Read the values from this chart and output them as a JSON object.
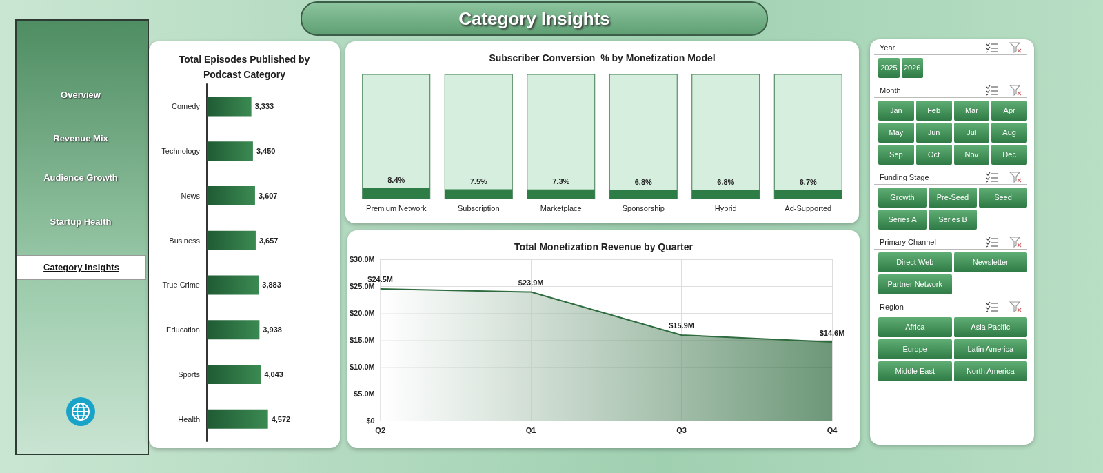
{
  "chart_data": [
    {
      "type": "other",
      "title": "Category Insights",
      "annotations": [
        "Overview",
        "Revenue Mix",
        "Audience Growth",
        "Startup Health",
        "Category Insights"
      ]
    },
    {
      "type": "bar",
      "orientation": "horizontal",
      "title": "Total Episodes Published by Podcast Category",
      "categories": [
        "Comedy",
        "Technology",
        "News",
        "Business",
        "True Crime",
        "Education",
        "Sports",
        "Health"
      ],
      "values": [
        3333,
        3450,
        3607,
        3657,
        3883,
        3938,
        4043,
        4572
      ],
      "value_labels": [
        "3,333",
        "3,450",
        "3,607",
        "3,657",
        "3,883",
        "3,938",
        "4,043",
        "4,572"
      ],
      "color": "#3b8a52"
    },
    {
      "type": "bar",
      "title": "Subscriber Conversion  % by Monetization Model",
      "categories": [
        "Premium Network",
        "Subscription",
        "Marketplace",
        "Sponsorship",
        "Hybrid",
        "Ad-Supported"
      ],
      "values": [
        8.4,
        7.5,
        7.3,
        6.8,
        6.8,
        6.7
      ],
      "value_labels": [
        "8.4%",
        "7.5%",
        "7.3%",
        "6.8%",
        "6.8%",
        "6.7%"
      ],
      "color": "#2f7d46",
      "ylim": [
        0,
        100
      ],
      "tick_labels": "x"
    },
    {
      "type": "area",
      "title": "Total Monetization Revenue by Quarter",
      "categories": [
        "Q2",
        "Q1",
        "Q3",
        "Q4"
      ],
      "values": [
        24.5,
        23.9,
        15.9,
        14.6
      ],
      "value_labels": [
        "$24.5M",
        "$23.9M",
        "$15.9M",
        "$14.6M"
      ],
      "color": "#2e6b3e",
      "ylim": [
        0,
        30
      ],
      "yticks": [
        {
          "value": 0,
          "label": "$0"
        },
        {
          "value": 5,
          "label": "$5.0M"
        },
        {
          "value": 10,
          "label": "$10.0M"
        },
        {
          "value": 15,
          "label": "$15.0M"
        },
        {
          "value": 20,
          "label": "$20.0M"
        },
        {
          "value": 25,
          "label": "$25.0M"
        },
        {
          "value": 30,
          "label": "$30.0M"
        }
      ],
      "grid": true,
      "marker": "none"
    },
    {
      "type": "other",
      "title": "Year",
      "annotations": [
        "2025",
        "2026"
      ]
    },
    {
      "type": "other",
      "title": "Month",
      "annotations": [
        "Jan",
        "Feb",
        "Mar",
        "Apr",
        "May",
        "Jun",
        "Jul",
        "Aug",
        "Sep",
        "Oct",
        "Nov",
        "Dec"
      ]
    },
    {
      "type": "other",
      "title": "Funding Stage",
      "annotations": [
        "Growth",
        "Pre-Seed",
        "Seed",
        "Series A",
        "Series B"
      ]
    },
    {
      "type": "other",
      "title": "Primary Channel",
      "annotations": [
        "Direct Web",
        "Newsletter",
        "Partner Network"
      ]
    },
    {
      "type": "other",
      "title": "Region",
      "annotations": [
        "Africa",
        "Asia Pacific",
        "Europe",
        "Latin America",
        "Middle East",
        "North America"
      ]
    }
  ]
}
